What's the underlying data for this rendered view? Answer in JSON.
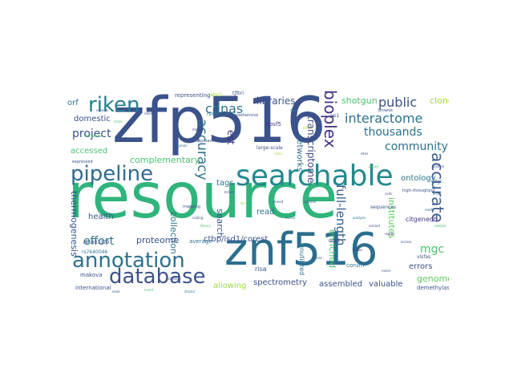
{
  "palette": {
    "dark_purple": "#46327e",
    "indigo": "#365c8d",
    "blue": "#2f6b8e",
    "steel": "#3b5a8f",
    "teal": "#277f8e",
    "green_teal": "#1fa187",
    "green": "#4ac16d",
    "light_green": "#a0da39",
    "yellow": "#d2e21b",
    "deep_purple": "#440154"
  },
  "words": {
    "resource": "resource",
    "zfp516": "zfp516",
    "znf516": "znf516",
    "searchable": "searchable",
    "pipeline": "pipeline",
    "annotation": "annotation",
    "database": "database",
    "riken": "riken",
    "bioplex": "bioplex",
    "interactome": "interactome",
    "public": "public",
    "community": "community",
    "thousands": "thousands",
    "accurate": "accurate",
    "project": "project",
    "effort": "effort",
    "cdnas": "cdnas",
    "accuracy": "accuracy",
    "libraries": "libraries",
    "complementary": "complementary",
    "est": "est",
    "mgc": "mgc",
    "genome": "genome",
    "full_length": "full-length",
    "transcriptome": "transcriptome",
    "networks": "networks",
    "ontology": "ontology",
    "institutes": "institutes",
    "clones": "clones",
    "shotgun": "shotgun",
    "domestic": "domestic",
    "orf": "orf",
    "accessed": "accessed",
    "health": "health",
    "collection": "collection",
    "proteome": "proteome",
    "search": "search",
    "tags": "tags",
    "read": "read",
    "ctbp": "ctbp/lsd1/corest",
    "spectrometry": "spectrometry",
    "allowing": "allowing",
    "assembled": "assembled",
    "valuable": "valuable",
    "errors": "errors",
    "enriched": "enriched",
    "thermogenesis": "thermogenesis",
    "international": "international",
    "citgenedb": "citgenedb",
    "risa": "risa",
    "makova": "makova",
    "representing": "representing",
    "average": "average",
    "rs4601150": "rs4601150",
    "rs7640046": "rs7640046",
    "demethylase": "demethylase",
    "cpsf5": "cpsf5",
    "corum": "corum",
    "large_scale": "large-scale",
    "unutilized": "unutilized",
    "rabs3": "rabs3",
    "tjfbri": "tjfbri",
    "comprehensive": "comprehensive",
    "pp1": "pp1",
    "sequences": "sequences",
    "ucp1": "ucp1",
    "high_throughput": "high-throughput",
    "browse": "browse",
    "cdgc": "cdgc",
    "rs6803379": "rs6803379",
    "expressed": "expressed",
    "mapping": "mapping",
    "behavior": "behavior",
    "protein": "protein",
    "nih": "nih",
    "approach": "approach",
    "vlsfas": "vlsfas",
    "small_1": "sapiens",
    "small_2": "clone",
    "small_3": "identify",
    "small_4": "human",
    "small_5": "mouse",
    "small_6": "gene",
    "small_7": "cdna",
    "small_8": "data",
    "small_9": "sites",
    "small_10": "phase",
    "small_11": "cells",
    "small_12": "analysis",
    "small_13": "variant",
    "small_14": "region",
    "small_15": "access",
    "small_16": "sample",
    "small_17": "protein",
    "small_18": "reads",
    "small_19": "brown",
    "small_20": "fat",
    "small_21": "cloned",
    "small_22": "vector",
    "small_23": "coding",
    "small_24": "library",
    "small_25": "genes",
    "small_26": "tissue",
    "small_27": "novel",
    "small_28": "array",
    "small_29": "clusters",
    "small_30": "insert",
    "small_31": "ends",
    "small_32": "strand"
  }
}
